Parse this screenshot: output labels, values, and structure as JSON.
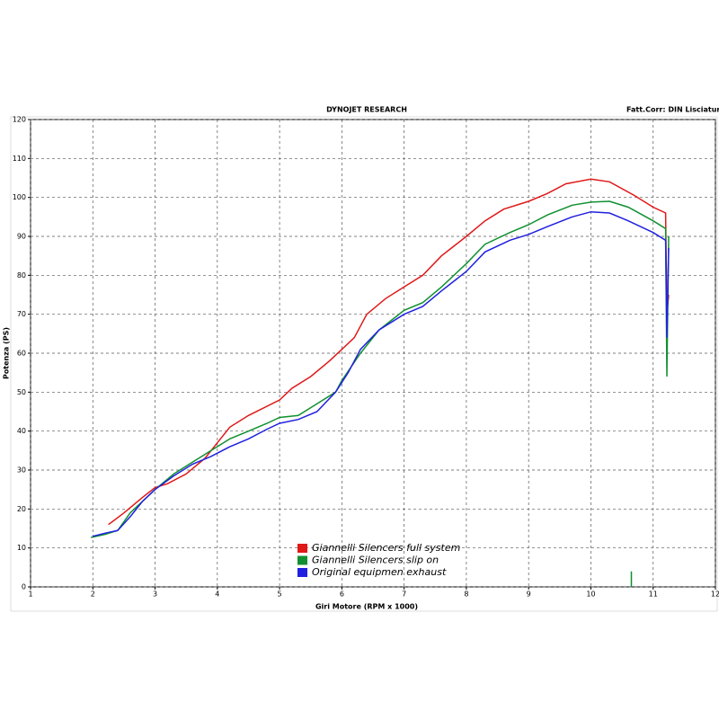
{
  "chart_data": {
    "type": "line",
    "title": "DYNOJET RESEARCH",
    "subtitle": "Fatt.Corr: DIN  Lisciatura",
    "x_label": "Giri Motore (RPM x 1000)",
    "y_label": "Potenza (PS)",
    "xlim": [
      1,
      12
    ],
    "ylim": [
      0,
      120
    ],
    "xticks": [
      1,
      2,
      3,
      4,
      5,
      6,
      7,
      8,
      9,
      10,
      11,
      12
    ],
    "yticks": [
      0,
      10,
      20,
      30,
      40,
      50,
      60,
      70,
      80,
      90,
      100,
      110,
      120
    ],
    "grid": true,
    "series": [
      {
        "name": "Giannelli Silencers full system",
        "color": "#e01818",
        "x": [
          2.25,
          2.5,
          2.8,
          3.0,
          3.2,
          3.5,
          3.8,
          4.0,
          4.2,
          4.5,
          5.0,
          5.2,
          5.5,
          5.8,
          6.0,
          6.2,
          6.4,
          6.7,
          7.0,
          7.3,
          7.6,
          8.0,
          8.3,
          8.6,
          9.0,
          9.3,
          9.6,
          10.0,
          10.3,
          10.7,
          11.0,
          11.2,
          11.22,
          11.25
        ],
        "values": [
          16,
          19,
          23,
          25.5,
          26.5,
          29,
          33,
          37,
          41,
          44,
          48,
          51,
          54,
          58,
          61,
          64,
          70,
          74,
          77,
          80,
          85,
          90,
          94,
          97,
          99,
          101,
          103.5,
          104.7,
          104,
          100.5,
          97.5,
          96,
          70,
          75
        ]
      },
      {
        "name": "Giannelli Silencers slip on",
        "color": "#109030",
        "x": [
          1.97,
          2.2,
          2.4,
          2.6,
          2.8,
          3.0,
          3.3,
          3.6,
          3.9,
          4.2,
          4.5,
          4.8,
          5.0,
          5.3,
          5.6,
          5.9,
          6.0,
          6.3,
          6.6,
          7.0,
          7.3,
          7.6,
          8.0,
          8.3,
          8.7,
          9.0,
          9.3,
          9.7,
          10.0,
          10.3,
          10.6,
          11.0,
          11.2,
          11.22,
          11.25,
          null,
          10.65,
          10.65
        ],
        "values": [
          12.7,
          13.5,
          14.5,
          19,
          22,
          25,
          29,
          32,
          35,
          38,
          40,
          42,
          43.5,
          44,
          47,
          50,
          53,
          60,
          66,
          71,
          73,
          77,
          83,
          88,
          91,
          93,
          95.5,
          98,
          98.8,
          99,
          97.5,
          94,
          92,
          54,
          90,
          null,
          0,
          4
        ]
      },
      {
        "name": "Original equipmen exhaust",
        "color": "#2020e0",
        "x": [
          2.0,
          2.2,
          2.4,
          2.6,
          2.8,
          3.0,
          3.3,
          3.6,
          3.9,
          4.2,
          4.5,
          4.8,
          5.0,
          5.3,
          5.6,
          5.9,
          6.1,
          6.3,
          6.6,
          7.0,
          7.3,
          7.6,
          8.0,
          8.3,
          8.7,
          9.0,
          9.3,
          9.7,
          10.0,
          10.3,
          10.6,
          11.0,
          11.2,
          11.22,
          11.25
        ],
        "values": [
          13,
          13.8,
          14.5,
          18,
          22,
          25,
          28.5,
          31.5,
          33.5,
          36,
          38,
          40.5,
          42,
          43,
          45,
          50,
          55,
          61,
          66,
          70,
          72,
          76,
          81,
          86,
          89,
          90.5,
          92.5,
          95,
          96.3,
          96,
          94,
          91,
          89,
          64,
          87
        ]
      }
    ]
  }
}
